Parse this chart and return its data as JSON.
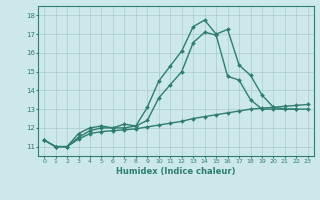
{
  "line1_x": [
    0,
    1,
    2,
    3,
    4,
    5,
    6,
    7,
    8,
    9,
    10,
    11,
    12,
    13,
    14,
    15,
    16,
    17,
    18,
    19,
    20,
    21,
    22
  ],
  "line1_y": [
    11.35,
    11.0,
    11.0,
    11.7,
    12.0,
    12.1,
    12.0,
    12.2,
    12.1,
    13.1,
    14.5,
    15.3,
    16.1,
    17.4,
    17.75,
    17.0,
    17.25,
    15.35,
    14.8,
    13.75,
    13.1,
    13.0,
    13.0
  ],
  "line2_x": [
    0,
    1,
    2,
    3,
    4,
    5,
    6,
    7,
    8,
    9,
    10,
    11,
    12,
    13,
    14,
    15,
    16,
    17,
    18,
    19,
    20,
    22,
    23
  ],
  "line2_y": [
    11.35,
    11.0,
    11.0,
    11.5,
    11.85,
    12.0,
    12.0,
    12.0,
    12.1,
    12.4,
    13.6,
    14.3,
    15.0,
    16.55,
    17.1,
    16.95,
    14.75,
    14.55,
    13.5,
    13.0,
    13.0,
    13.0,
    13.0
  ],
  "line3_x": [
    0,
    1,
    2,
    3,
    4,
    5,
    6,
    7,
    8,
    9,
    10,
    11,
    12,
    13,
    14,
    15,
    16,
    17,
    18,
    19,
    20,
    21,
    22,
    23
  ],
  "line3_y": [
    11.35,
    11.0,
    11.0,
    11.4,
    11.7,
    11.8,
    11.85,
    11.9,
    11.95,
    12.05,
    12.15,
    12.25,
    12.35,
    12.5,
    12.6,
    12.7,
    12.8,
    12.9,
    13.0,
    13.05,
    13.1,
    13.15,
    13.2,
    13.25
  ],
  "color": "#2e7d70",
  "bg_color": "#cce8e8",
  "grid_color": "#aacccc",
  "xlabel": "Humidex (Indice chaleur)",
  "ylim": [
    10.5,
    18.5
  ],
  "xlim": [
    -0.5,
    23.5
  ],
  "yticks": [
    11,
    12,
    13,
    14,
    15,
    16,
    17,
    18
  ],
  "xticks": [
    0,
    1,
    2,
    3,
    4,
    5,
    6,
    7,
    8,
    9,
    10,
    11,
    12,
    13,
    14,
    15,
    16,
    17,
    18,
    19,
    20,
    21,
    22,
    23
  ],
  "markersize": 2.0,
  "linewidth": 1.0
}
